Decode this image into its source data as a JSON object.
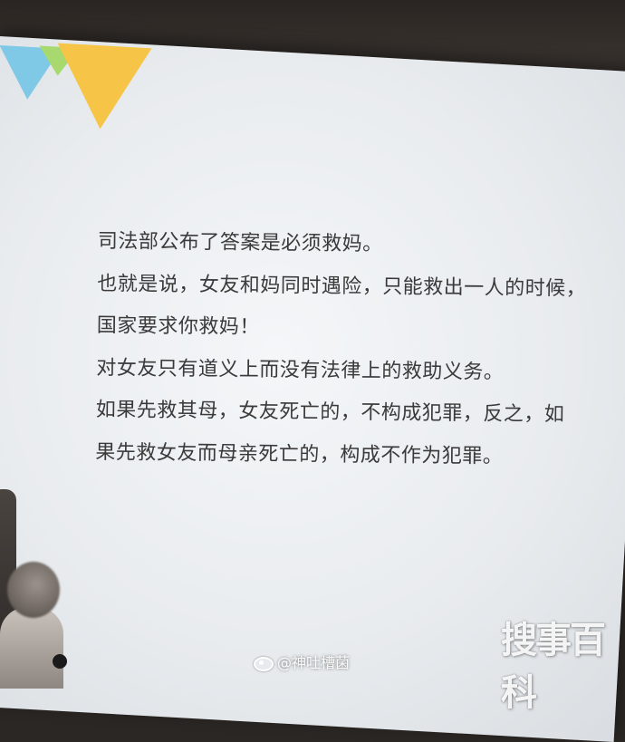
{
  "slide": {
    "lines": [
      "司法部公布了答案是必须救妈。",
      "也就是说，女友和妈同时遇险，只能救出一人的时候，",
      "国家要求你救妈！",
      "对女友只有道义上而没有法律上的救助义务。",
      "如果先救其母，女友死亡的，不构成犯罪，反之，如",
      "果先救女友而母亲死亡的，构成不作为犯罪。"
    ]
  },
  "watermark": {
    "weibo": "@神吐槽菌",
    "logo": "搜事百科"
  },
  "colors": {
    "text": "#3a3a3a",
    "triangle_blue": "#7fc8e6",
    "triangle_green": "#a8d96e",
    "triangle_yellow": "#f6c446"
  }
}
